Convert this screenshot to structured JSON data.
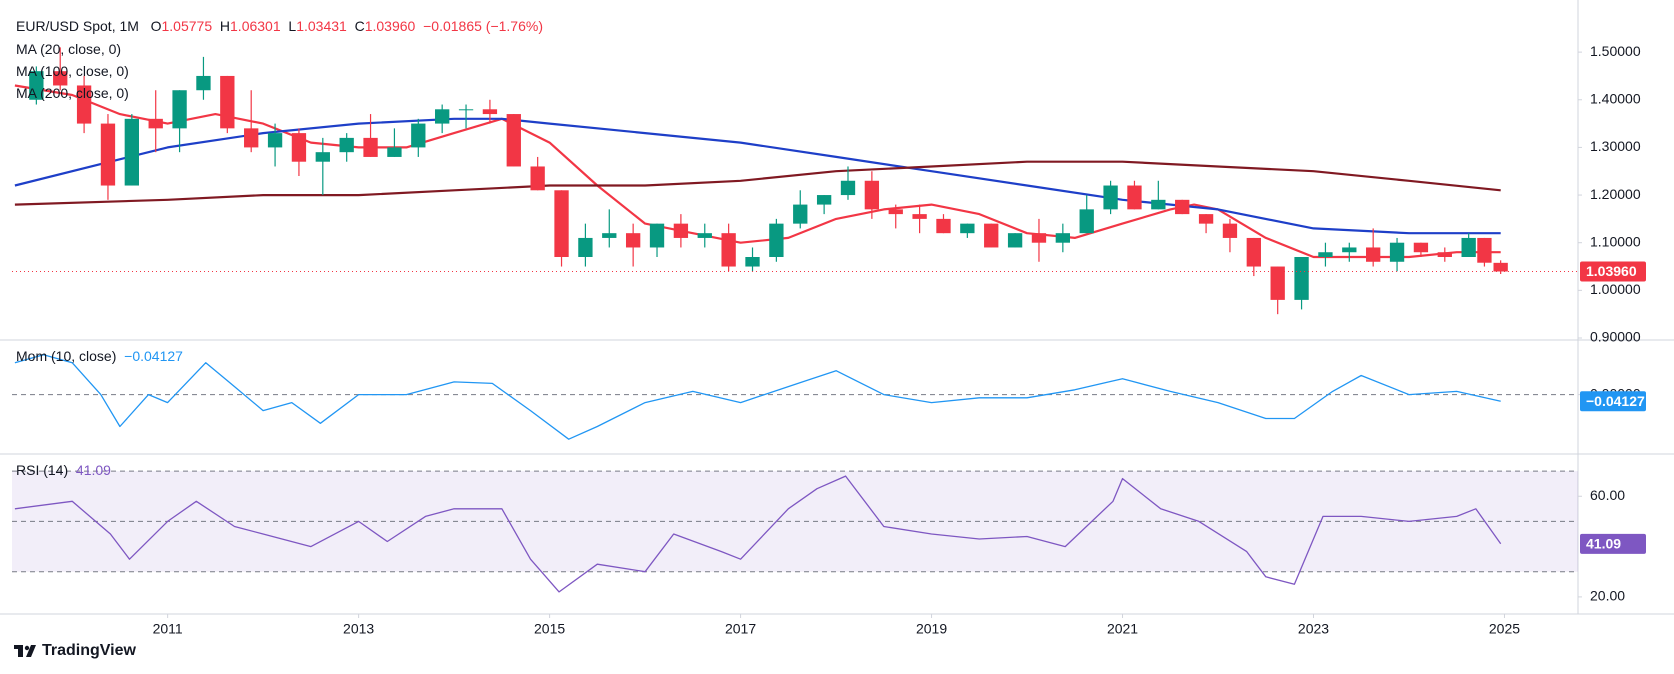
{
  "brand": "TradingView",
  "chart_data": [
    {
      "type": "candlestick",
      "title": "EUR/USD Spot, 1M",
      "ohlc_letters": [
        "O",
        "H",
        "L",
        "C"
      ],
      "last_labels": [
        "1.05775",
        "1.06301",
        "1.03431",
        "1.03960"
      ],
      "change": {
        "value": -0.01865,
        "label": "−0.01865"
      },
      "change_pct": {
        "value": -1.76,
        "label": "(−1.76%)"
      },
      "up_color": "#089981",
      "down_color": "#f23645",
      "x": [
        2009.625,
        2009.875,
        2010.125,
        2010.375,
        2010.625,
        2010.875,
        2011.125,
        2011.375,
        2011.625,
        2011.875,
        2012.125,
        2012.375,
        2012.625,
        2012.875,
        2013.125,
        2013.375,
        2013.625,
        2013.875,
        2014.125,
        2014.375,
        2014.625,
        2014.875,
        2015.125,
        2015.375,
        2015.625,
        2015.875,
        2016.125,
        2016.375,
        2016.625,
        2016.875,
        2017.125,
        2017.375,
        2017.625,
        2017.875,
        2018.125,
        2018.375,
        2018.625,
        2018.875,
        2019.125,
        2019.375,
        2019.625,
        2019.875,
        2020.125,
        2020.375,
        2020.625,
        2020.875,
        2021.125,
        2021.375,
        2021.625,
        2021.875,
        2022.125,
        2022.375,
        2022.625,
        2022.875,
        2023.125,
        2023.375,
        2023.625,
        2023.875,
        2024.125,
        2024.375,
        2024.625,
        2024.79,
        2024.96
      ],
      "ohlc": [
        [
          1.4,
          1.47,
          1.39,
          1.46
        ],
        [
          1.46,
          1.51,
          1.42,
          1.43
        ],
        [
          1.43,
          1.45,
          1.33,
          1.35
        ],
        [
          1.35,
          1.37,
          1.19,
          1.22
        ],
        [
          1.22,
          1.37,
          1.22,
          1.36
        ],
        [
          1.36,
          1.42,
          1.29,
          1.34
        ],
        [
          1.34,
          1.42,
          1.29,
          1.42
        ],
        [
          1.42,
          1.49,
          1.4,
          1.45
        ],
        [
          1.45,
          1.45,
          1.33,
          1.34
        ],
        [
          1.34,
          1.42,
          1.29,
          1.3
        ],
        [
          1.3,
          1.35,
          1.26,
          1.33
        ],
        [
          1.33,
          1.34,
          1.24,
          1.27
        ],
        [
          1.27,
          1.32,
          1.2,
          1.29
        ],
        [
          1.29,
          1.33,
          1.27,
          1.32
        ],
        [
          1.32,
          1.37,
          1.28,
          1.28
        ],
        [
          1.28,
          1.34,
          1.28,
          1.3
        ],
        [
          1.3,
          1.36,
          1.28,
          1.35
        ],
        [
          1.35,
          1.39,
          1.33,
          1.38
        ],
        [
          1.38,
          1.39,
          1.34,
          1.38
        ],
        [
          1.38,
          1.4,
          1.35,
          1.37
        ],
        [
          1.37,
          1.37,
          1.26,
          1.26
        ],
        [
          1.26,
          1.28,
          1.21,
          1.21
        ],
        [
          1.21,
          1.21,
          1.05,
          1.07
        ],
        [
          1.07,
          1.14,
          1.05,
          1.11
        ],
        [
          1.11,
          1.17,
          1.09,
          1.12
        ],
        [
          1.12,
          1.14,
          1.05,
          1.09
        ],
        [
          1.09,
          1.14,
          1.07,
          1.14
        ],
        [
          1.14,
          1.16,
          1.09,
          1.11
        ],
        [
          1.11,
          1.14,
          1.09,
          1.12
        ],
        [
          1.12,
          1.14,
          1.04,
          1.05
        ],
        [
          1.05,
          1.09,
          1.04,
          1.07
        ],
        [
          1.07,
          1.15,
          1.06,
          1.14
        ],
        [
          1.14,
          1.21,
          1.13,
          1.18
        ],
        [
          1.18,
          1.2,
          1.16,
          1.2
        ],
        [
          1.2,
          1.26,
          1.19,
          1.23
        ],
        [
          1.23,
          1.25,
          1.15,
          1.17
        ],
        [
          1.17,
          1.18,
          1.13,
          1.16
        ],
        [
          1.16,
          1.18,
          1.12,
          1.15
        ],
        [
          1.15,
          1.16,
          1.12,
          1.12
        ],
        [
          1.12,
          1.14,
          1.11,
          1.14
        ],
        [
          1.14,
          1.14,
          1.09,
          1.09
        ],
        [
          1.09,
          1.12,
          1.09,
          1.12
        ],
        [
          1.12,
          1.15,
          1.06,
          1.1
        ],
        [
          1.1,
          1.14,
          1.08,
          1.12
        ],
        [
          1.12,
          1.2,
          1.12,
          1.17
        ],
        [
          1.17,
          1.23,
          1.16,
          1.22
        ],
        [
          1.22,
          1.23,
          1.17,
          1.17
        ],
        [
          1.17,
          1.23,
          1.17,
          1.19
        ],
        [
          1.19,
          1.19,
          1.16,
          1.16
        ],
        [
          1.16,
          1.16,
          1.12,
          1.14
        ],
        [
          1.14,
          1.15,
          1.08,
          1.11
        ],
        [
          1.11,
          1.11,
          1.03,
          1.05
        ],
        [
          1.05,
          1.05,
          0.95,
          0.98
        ],
        [
          0.98,
          1.07,
          0.96,
          1.07
        ],
        [
          1.07,
          1.1,
          1.05,
          1.08
        ],
        [
          1.08,
          1.1,
          1.06,
          1.09
        ],
        [
          1.09,
          1.13,
          1.05,
          1.06
        ],
        [
          1.06,
          1.11,
          1.04,
          1.1
        ],
        [
          1.1,
          1.1,
          1.07,
          1.08
        ],
        [
          1.08,
          1.09,
          1.06,
          1.07
        ],
        [
          1.07,
          1.12,
          1.07,
          1.11
        ],
        [
          1.11,
          1.11,
          1.05,
          1.058
        ],
        [
          1.05775,
          1.06301,
          1.03431,
          1.0396
        ]
      ],
      "series": [
        {
          "name": "MA (20, close, 0)",
          "color": "#f23645",
          "x": [
            2009.4,
            2010,
            2010.5,
            2011,
            2011.5,
            2012,
            2012.5,
            2013,
            2013.5,
            2014,
            2014.5,
            2015,
            2015.5,
            2016,
            2016.5,
            2017,
            2017.5,
            2018,
            2018.5,
            2019,
            2019.5,
            2020,
            2020.5,
            2021,
            2021.5,
            2021.75,
            2022,
            2022.5,
            2023,
            2023.5,
            2024,
            2024.5,
            2024.96
          ],
          "values": [
            1.43,
            1.41,
            1.37,
            1.35,
            1.37,
            1.35,
            1.31,
            1.3,
            1.3,
            1.33,
            1.36,
            1.31,
            1.22,
            1.14,
            1.12,
            1.1,
            1.11,
            1.15,
            1.17,
            1.18,
            1.16,
            1.12,
            1.11,
            1.14,
            1.17,
            1.18,
            1.17,
            1.11,
            1.07,
            1.07,
            1.07,
            1.08,
            1.08
          ]
        },
        {
          "name": "MA (100, close, 0)",
          "color": "#1e3fc8",
          "x": [
            2009.4,
            2011,
            2012,
            2013,
            2014,
            2014.5,
            2015,
            2016,
            2017,
            2018,
            2019,
            2020,
            2021,
            2022,
            2023,
            2024,
            2024.96
          ],
          "values": [
            1.22,
            1.3,
            1.33,
            1.35,
            1.36,
            1.36,
            1.35,
            1.33,
            1.31,
            1.28,
            1.25,
            1.22,
            1.19,
            1.17,
            1.13,
            1.12,
            1.12
          ]
        },
        {
          "name": "MA (200, close, 0)",
          "color": "#801922",
          "x": [
            2009.4,
            2011,
            2012,
            2013,
            2014,
            2015,
            2016,
            2017,
            2018,
            2019,
            2020,
            2021,
            2022,
            2023,
            2024,
            2024.96
          ],
          "values": [
            1.18,
            1.19,
            1.2,
            1.2,
            1.21,
            1.22,
            1.22,
            1.23,
            1.25,
            1.26,
            1.27,
            1.27,
            1.26,
            1.25,
            1.23,
            1.21
          ]
        }
      ],
      "xlim": [
        2009.37,
        2025.77
      ],
      "ylim": [
        0.9,
        1.58
      ],
      "yticks": [
        {
          "value": 0.9,
          "label": "0.90000"
        },
        {
          "value": 1.0,
          "label": "1.00000"
        },
        {
          "value": 1.1,
          "label": "1.10000"
        },
        {
          "value": 1.2,
          "label": "1.20000"
        },
        {
          "value": 1.3,
          "label": "1.30000"
        },
        {
          "value": 1.4,
          "label": "1.40000"
        },
        {
          "value": 1.5,
          "label": "1.50000"
        }
      ],
      "grid": false,
      "last_price_line": true
    },
    {
      "type": "line",
      "title": "Mom (10, close)",
      "color": "#2196f3",
      "last_label": "−0.04127",
      "x": [
        2009.4,
        2009.7,
        2010,
        2010.3,
        2010.5,
        2010.8,
        2011,
        2011.4,
        2011.7,
        2012,
        2012.3,
        2012.6,
        2013,
        2013.5,
        2014,
        2014.4,
        2014.8,
        2015.2,
        2015.5,
        2016,
        2016.5,
        2017,
        2017.5,
        2018,
        2018.5,
        2019,
        2019.5,
        2020,
        2020.5,
        2021,
        2021.5,
        2022,
        2022.5,
        2022.8,
        2023.2,
        2023.5,
        2024,
        2024.5,
        2024.96
      ],
      "values": [
        0.2,
        0.25,
        0.2,
        0.0,
        -0.2,
        0.0,
        -0.05,
        0.2,
        0.05,
        -0.1,
        -0.05,
        -0.18,
        0.0,
        0.0,
        0.08,
        0.07,
        -0.1,
        -0.28,
        -0.2,
        -0.05,
        0.02,
        -0.05,
        0.05,
        0.15,
        0.0,
        -0.05,
        -0.02,
        -0.02,
        0.03,
        0.1,
        0.02,
        -0.05,
        -0.15,
        -0.15,
        0.02,
        0.12,
        0.0,
        0.02,
        -0.04127
      ],
      "xlim": [
        2009.37,
        2025.77
      ],
      "ylim": [
        -0.36,
        0.33
      ],
      "yticks": [
        {
          "value": 0,
          "label": "0.00000"
        }
      ],
      "levels": [
        0
      ]
    },
    {
      "type": "line",
      "title": "RSI (14)",
      "color": "#7e57c2",
      "x": [
        2009.4,
        2010,
        2010.4,
        2010.6,
        2011,
        2011.3,
        2011.7,
        2012,
        2012.5,
        2013,
        2013.3,
        2013.7,
        2014,
        2014.5,
        2014.8,
        2015.1,
        2015.5,
        2016,
        2016.3,
        2016.8,
        2017,
        2017.5,
        2017.8,
        2018.1,
        2018.5,
        2019,
        2019.5,
        2020,
        2020.4,
        2020.9,
        2021,
        2021.4,
        2021.8,
        2022.3,
        2022.5,
        2022.8,
        2023.1,
        2023.5,
        2024,
        2024.5,
        2024.7,
        2024.96
      ],
      "values": [
        55,
        58,
        45,
        35,
        50,
        58,
        48,
        45,
        40,
        50,
        42,
        52,
        55,
        55,
        35,
        22,
        33,
        30,
        45,
        38,
        35,
        55,
        63,
        68,
        48,
        45,
        43,
        44,
        40,
        58,
        67,
        55,
        50,
        38,
        28,
        25,
        52,
        52,
        50,
        52,
        55,
        41.09
      ],
      "xlim": [
        2009.37,
        2025.77
      ],
      "xticks": [
        2011,
        2013,
        2015,
        2017,
        2019,
        2021,
        2023,
        2025
      ],
      "ylim": [
        14,
        76
      ],
      "yticks": [
        {
          "value": 20,
          "label": "20.00"
        },
        {
          "value": 60,
          "label": "60.00"
        }
      ],
      "levels": [
        30,
        50,
        70
      ],
      "band": true
    }
  ]
}
